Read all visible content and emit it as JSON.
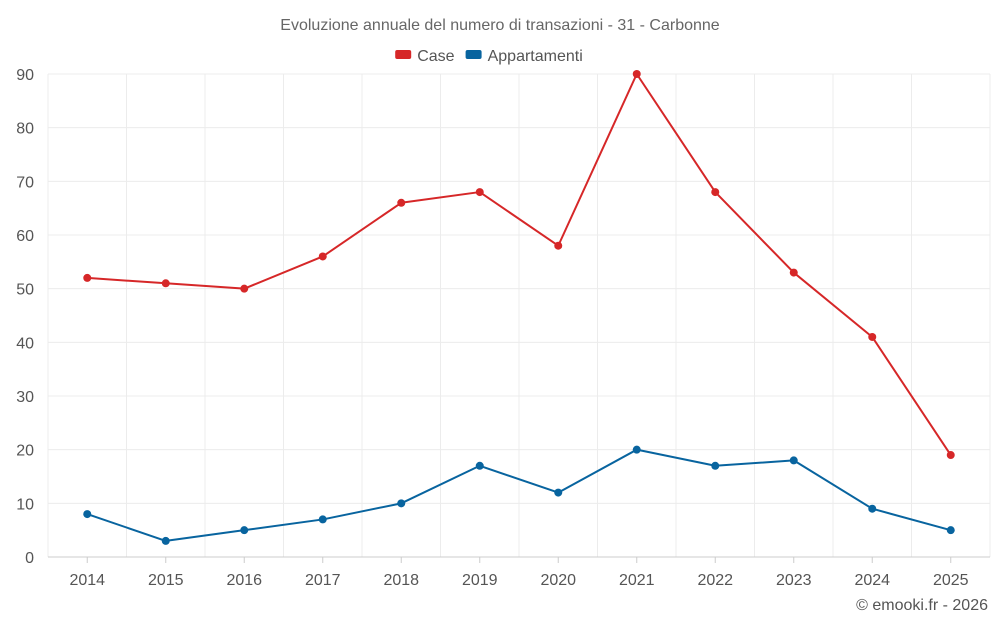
{
  "chart_data": {
    "type": "line",
    "title": "Evoluzione annuale del numero di transazioni - 31 - Carbonne",
    "categories": [
      "2014",
      "2015",
      "2016",
      "2017",
      "2018",
      "2019",
      "2020",
      "2021",
      "2022",
      "2023",
      "2024",
      "2025"
    ],
    "series": [
      {
        "name": "Case",
        "color": "#d62728",
        "values": [
          52,
          51,
          50,
          56,
          66,
          68,
          58,
          90,
          68,
          53,
          41,
          19
        ]
      },
      {
        "name": "Appartamenti",
        "color": "#08649f",
        "values": [
          8,
          3,
          5,
          7,
          10,
          17,
          12,
          20,
          17,
          18,
          9,
          5
        ]
      }
    ],
    "ylim": [
      0,
      90
    ],
    "yticks": [
      0,
      10,
      20,
      30,
      40,
      50,
      60,
      70,
      80,
      90
    ],
    "xlabel": "",
    "ylabel": "",
    "grid": true,
    "legend_position": "top-center"
  },
  "credit": "© emooki.fr - 2026"
}
